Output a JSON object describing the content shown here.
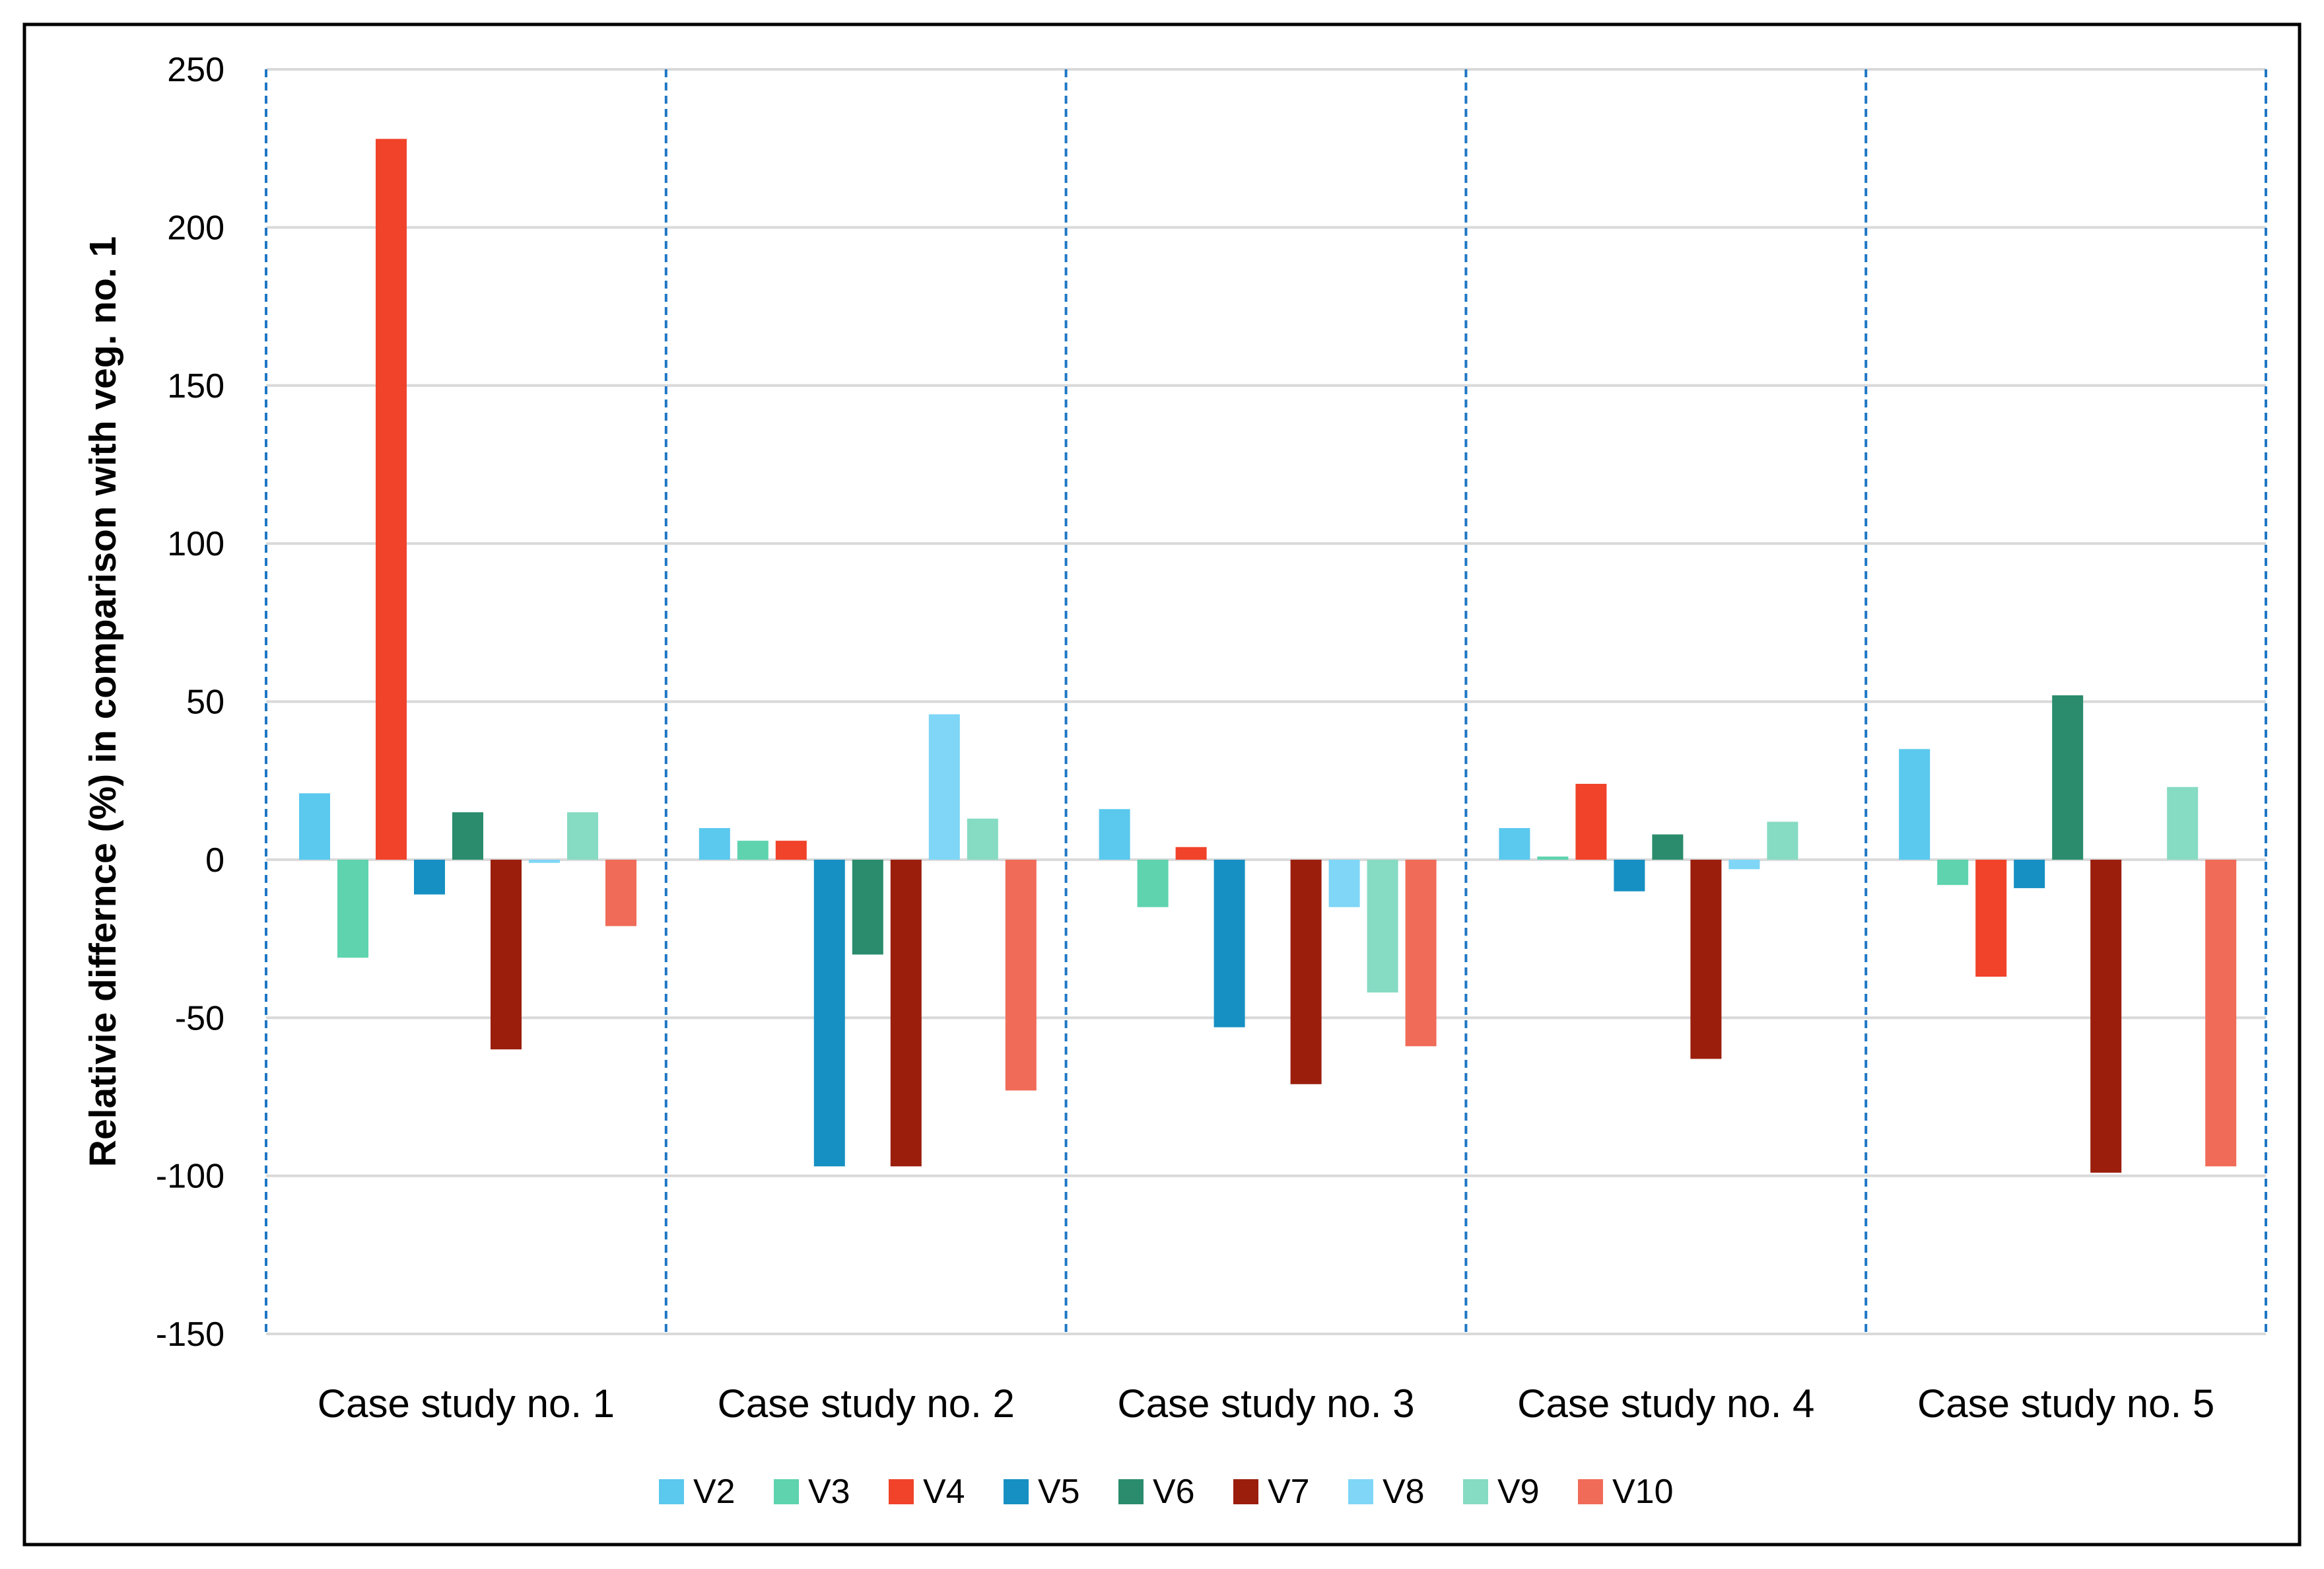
{
  "chart_data": {
    "type": "bar",
    "title": "",
    "xlabel": "",
    "ylabel": "Relativie differnce (%) in comparison with veg.  no. 1",
    "ylim": [
      -150,
      250
    ],
    "yticks": [
      250,
      200,
      150,
      100,
      50,
      0,
      -50,
      -100,
      -150
    ],
    "grid": true,
    "legend_position": "bottom",
    "categories": [
      "Case study no. 1",
      "Case study no. 2",
      "Case study no. 3",
      "Case study no. 4",
      "Case study no. 5"
    ],
    "series": [
      {
        "name": "V2",
        "color": "#5BC8EE",
        "values": [
          21,
          10,
          16,
          10,
          35
        ]
      },
      {
        "name": "V3",
        "color": "#5ED3AE",
        "values": [
          -31,
          6,
          -15,
          1,
          -8
        ]
      },
      {
        "name": "V4",
        "color": "#F0432A",
        "values": [
          228,
          6,
          4,
          24,
          -37
        ]
      },
      {
        "name": "V5",
        "color": "#1690C3",
        "values": [
          -11,
          -97,
          -53,
          -10,
          -9
        ]
      },
      {
        "name": "V6",
        "color": "#2A8C6C",
        "values": [
          15,
          -30,
          0,
          8,
          52
        ]
      },
      {
        "name": "V7",
        "color": "#9B1E0D",
        "values": [
          -60,
          -97,
          -71,
          -63,
          -99
        ]
      },
      {
        "name": "V8",
        "color": "#7FD6F6",
        "values": [
          -1,
          46,
          -15,
          -3,
          0
        ]
      },
      {
        "name": "V9",
        "color": "#86DBC3",
        "values": [
          15,
          13,
          -42,
          12,
          23
        ]
      },
      {
        "name": "V10",
        "color": "#F06B58",
        "values": [
          -21,
          -73,
          -59,
          0,
          -97
        ]
      }
    ],
    "separator_color": "#1F77C4",
    "gridline_color": "#D9D9D9"
  }
}
